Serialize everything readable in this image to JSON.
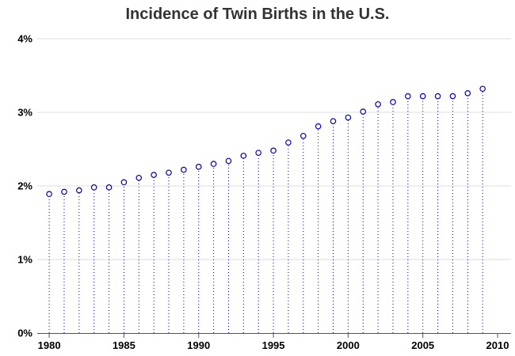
{
  "chart_data": {
    "type": "scatter",
    "title": "Incidence of Twin Births in the U.S.",
    "xlabel": "",
    "ylabel": "",
    "x": [
      1980,
      1981,
      1982,
      1983,
      1984,
      1985,
      1986,
      1987,
      1988,
      1989,
      1990,
      1991,
      1992,
      1993,
      1994,
      1995,
      1996,
      1997,
      1998,
      1999,
      2000,
      2001,
      2002,
      2003,
      2004,
      2005,
      2006,
      2007,
      2008,
      2009
    ],
    "series": [
      {
        "values": [
          1.89,
          1.92,
          1.94,
          1.98,
          1.98,
          2.05,
          2.11,
          2.15,
          2.18,
          2.22,
          2.26,
          2.3,
          2.34,
          2.41,
          2.45,
          2.48,
          2.59,
          2.68,
          2.81,
          2.88,
          2.93,
          3.01,
          3.11,
          3.14,
          3.22,
          3.22,
          3.22,
          3.22,
          3.26,
          3.32
        ]
      }
    ],
    "xlim": [
      1979.2,
      2010.9
    ],
    "ylim": [
      0,
      4
    ],
    "x_ticks": [
      1980,
      1985,
      1990,
      1995,
      2000,
      2005,
      2010
    ],
    "y_ticks": [
      0,
      1,
      2,
      3,
      4
    ],
    "y_tick_labels": [
      "0%",
      "1%",
      "2%",
      "3%",
      "4%"
    ],
    "grid": true,
    "legend": "none",
    "colors": {
      "marker": "#0000cc",
      "needle": "#0000cc",
      "grid": "#dddddd",
      "axis": "#555555",
      "title": "#333333"
    }
  }
}
